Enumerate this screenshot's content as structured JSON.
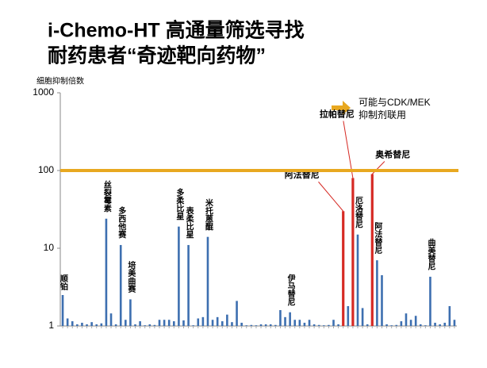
{
  "chart_data": {
    "type": "bar",
    "title": [
      "i-Chemo-HT 高通量筛选寻找",
      "耐药患者“奇迹靶向药物”"
    ],
    "y_label": "细胞抑制倍数",
    "annotation": [
      "可能与CDK/MEK",
      "抑制剂联用"
    ],
    "log_scale": true,
    "ylim": [
      1,
      1000
    ],
    "yticks": [
      1,
      10,
      100,
      1000
    ],
    "reference_line": {
      "value": 100,
      "color": "#e8a820"
    },
    "color": "#3d6fb0",
    "categories": [
      null,
      null,
      null,
      null,
      null,
      null,
      null,
      null,
      null,
      null,
      null,
      null,
      null,
      null,
      null,
      null,
      null,
      null,
      null,
      null,
      null,
      null,
      null,
      null,
      null,
      null,
      null,
      null,
      null,
      null,
      null,
      null,
      null,
      null,
      null,
      null,
      null,
      null,
      null,
      null,
      null,
      null,
      null,
      null,
      null,
      null,
      null,
      null,
      null,
      null,
      null,
      null,
      null,
      null,
      null,
      null,
      null,
      null,
      null,
      null,
      null,
      null,
      null,
      null,
      null,
      null,
      null,
      null,
      null,
      null,
      null,
      null,
      null,
      null,
      null,
      null,
      null,
      null,
      null,
      null,
      null,
      null
    ],
    "values": [
      2.5,
      1.25,
      1.15,
      1.05,
      1.1,
      1.05,
      1.12,
      1.05,
      1.08,
      24,
      1.45,
      1.05,
      11,
      1.2,
      2.2,
      1.05,
      1.15,
      1.02,
      1.05,
      1.03,
      1.2,
      1.2,
      1.2,
      1.15,
      19,
      1.18,
      11,
      1.02,
      1.25,
      1.3,
      14,
      1.2,
      1.3,
      1.15,
      1.4,
      1.12,
      2.1,
      1.1,
      1.02,
      1.03,
      1.02,
      1.05,
      1.05,
      1.05,
      1.03,
      1.6,
      1.3,
      1.5,
      1.2,
      1.2,
      1.1,
      1.2,
      1.05,
      1.03,
      1.02,
      1.03,
      1.2,
      1.05,
      30,
      1.8,
      80,
      15,
      1.7,
      1.05,
      90,
      7,
      4.5,
      1.05,
      1.02,
      1.03,
      1.15,
      1.45,
      1.2,
      1.35,
      1.05,
      1.02,
      4.3,
      1.1,
      1.05,
      1.1,
      1.8,
      1.2
    ],
    "colors": [
      "#3d6fb0",
      "#3d6fb0",
      "#3d6fb0",
      "#3d6fb0",
      "#3d6fb0",
      "#3d6fb0",
      "#3d6fb0",
      "#3d6fb0",
      "#3d6fb0",
      "#3d6fb0",
      "#3d6fb0",
      "#3d6fb0",
      "#3d6fb0",
      "#3d6fb0",
      "#3d6fb0",
      "#3d6fb0",
      "#3d6fb0",
      "#3d6fb0",
      "#3d6fb0",
      "#3d6fb0",
      "#3d6fb0",
      "#3d6fb0",
      "#3d6fb0",
      "#3d6fb0",
      "#3d6fb0",
      "#3d6fb0",
      "#3d6fb0",
      "#3d6fb0",
      "#3d6fb0",
      "#3d6fb0",
      "#3d6fb0",
      "#3d6fb0",
      "#3d6fb0",
      "#3d6fb0",
      "#3d6fb0",
      "#3d6fb0",
      "#3d6fb0",
      "#3d6fb0",
      "#3d6fb0",
      "#3d6fb0",
      "#3d6fb0",
      "#3d6fb0",
      "#3d6fb0",
      "#3d6fb0",
      "#3d6fb0",
      "#3d6fb0",
      "#3d6fb0",
      "#3d6fb0",
      "#3d6fb0",
      "#3d6fb0",
      "#3d6fb0",
      "#3d6fb0",
      "#3d6fb0",
      "#3d6fb0",
      "#3d6fb0",
      "#3d6fb0",
      "#3d6fb0",
      "#3d6fb0",
      "#d62a24",
      "#3d6fb0",
      "#d62a24",
      "#3d6fb0",
      "#3d6fb0",
      "#3d6fb0",
      "#d62a24",
      "#3d6fb0",
      "#3d6fb0",
      "#3d6fb0",
      "#3d6fb0",
      "#3d6fb0",
      "#3d6fb0",
      "#3d6fb0",
      "#3d6fb0",
      "#3d6fb0",
      "#3d6fb0",
      "#3d6fb0",
      "#3d6fb0",
      "#3d6fb0",
      "#3d6fb0",
      "#3d6fb0",
      "#3d6fb0",
      "#3d6fb0"
    ],
    "bar_labels": [
      "顺铂",
      null,
      null,
      null,
      null,
      null,
      null,
      null,
      null,
      "丝裂霉素",
      null,
      null,
      "多西他赛",
      null,
      "培美曲赛",
      null,
      null,
      null,
      null,
      null,
      null,
      null,
      null,
      null,
      "多柔比星",
      null,
      "表柔比星",
      null,
      null,
      null,
      "米托蒽醌",
      null,
      null,
      null,
      null,
      null,
      null,
      null,
      null,
      null,
      null,
      null,
      null,
      null,
      null,
      null,
      null,
      "伊马替尼",
      null,
      null,
      null,
      null,
      null,
      null,
      null,
      null,
      null,
      null,
      "阿法替尼",
      null,
      "拉帕替尼",
      "厄洛替尼",
      null,
      null,
      "奥希替尼",
      "阿法替尼",
      null,
      null,
      null,
      null,
      null,
      null,
      null,
      null,
      null,
      null,
      "曲美替尼",
      null,
      null,
      null,
      null,
      null
    ]
  }
}
